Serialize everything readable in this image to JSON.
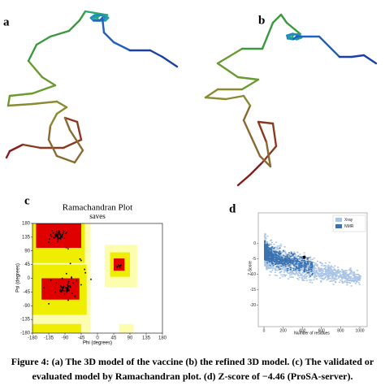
{
  "panels": {
    "a": {
      "label": "a"
    },
    "b": {
      "label": "b"
    },
    "c": {
      "label": "c",
      "title": "Ramachandran Plot",
      "subtitle": "saves",
      "x_label": "Phi (degrees)",
      "y_label": "Psi (degrees)",
      "x_ticks": [
        -180,
        -135,
        -90,
        -45,
        0,
        45,
        90,
        135,
        180
      ],
      "y_ticks": [
        180,
        135,
        90,
        45,
        0,
        -45,
        -90,
        -135,
        -180
      ]
    },
    "d": {
      "label": "d",
      "x_label": "Number of residues",
      "y_label": "Z-Score",
      "x_ticks": [
        0,
        200,
        400,
        600,
        800,
        1000
      ],
      "y_ticks": [
        0,
        -5,
        -10,
        -15,
        -20
      ],
      "legend": [
        "Xray",
        "NMR"
      ]
    }
  },
  "caption": [
    "Figure 4: (a) The 3D model of the vaccine (b) the refined 3D model. (c) The validated or",
    "evaluated model by Ramachandran plot. (d) Z-score of −4.46 (ProSA-server)."
  ]
}
